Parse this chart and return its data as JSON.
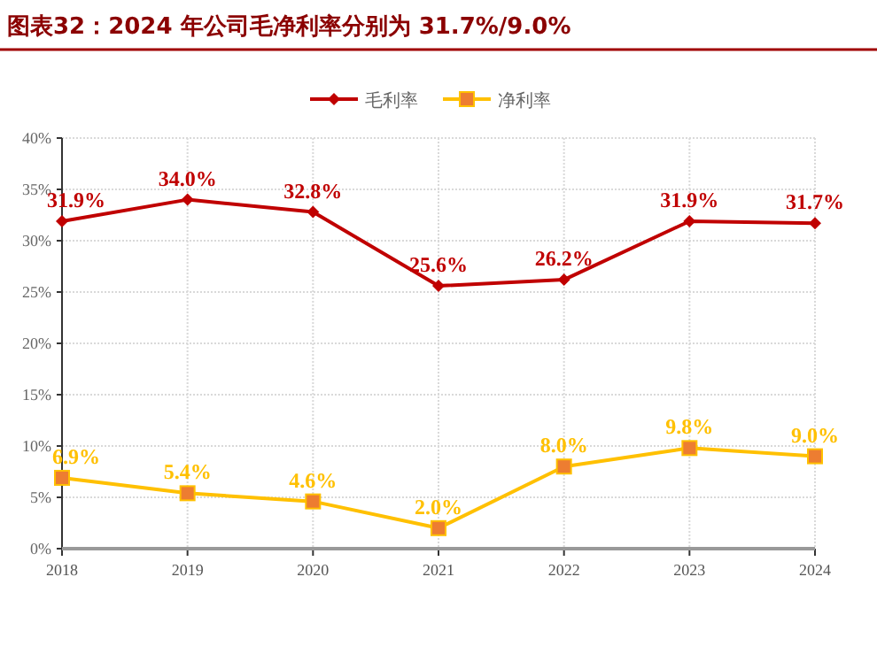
{
  "chart_data": {
    "type": "line",
    "title": "图表32：2024 年公司毛净利率分别为 31.7%/9.0%",
    "categories": [
      "2018",
      "2019",
      "2020",
      "2021",
      "2022",
      "2023",
      "2024"
    ],
    "series": [
      {
        "name": "毛利率",
        "color": "#c00000",
        "marker": "diamond",
        "values": [
          31.9,
          34.0,
          32.8,
          25.6,
          26.2,
          31.9,
          31.7
        ],
        "value_labels": [
          "31.9%",
          "34.0%",
          "32.8%",
          "25.6%",
          "26.2%",
          "31.9%",
          "31.7%"
        ]
      },
      {
        "name": "净利率",
        "color": "#ffc000",
        "marker": "square",
        "values": [
          6.9,
          5.4,
          4.6,
          2.0,
          8.0,
          9.8,
          9.0
        ],
        "value_labels": [
          "6.9%",
          "5.4%",
          "4.6%",
          "2.0%",
          "8.0%",
          "9.8%",
          "9.0%"
        ]
      }
    ],
    "ylim": [
      0,
      40
    ],
    "yticks": [
      {
        "value": 0,
        "label": "0%"
      },
      {
        "value": 5,
        "label": "5%"
      },
      {
        "value": 10,
        "label": "10%"
      },
      {
        "value": 15,
        "label": "15%"
      },
      {
        "value": 20,
        "label": "20%"
      },
      {
        "value": 25,
        "label": "25%"
      },
      {
        "value": 30,
        "label": "30%"
      },
      {
        "value": 35,
        "label": "35%"
      },
      {
        "value": 40,
        "label": "40%"
      }
    ],
    "grid": true,
    "legend": "top"
  }
}
